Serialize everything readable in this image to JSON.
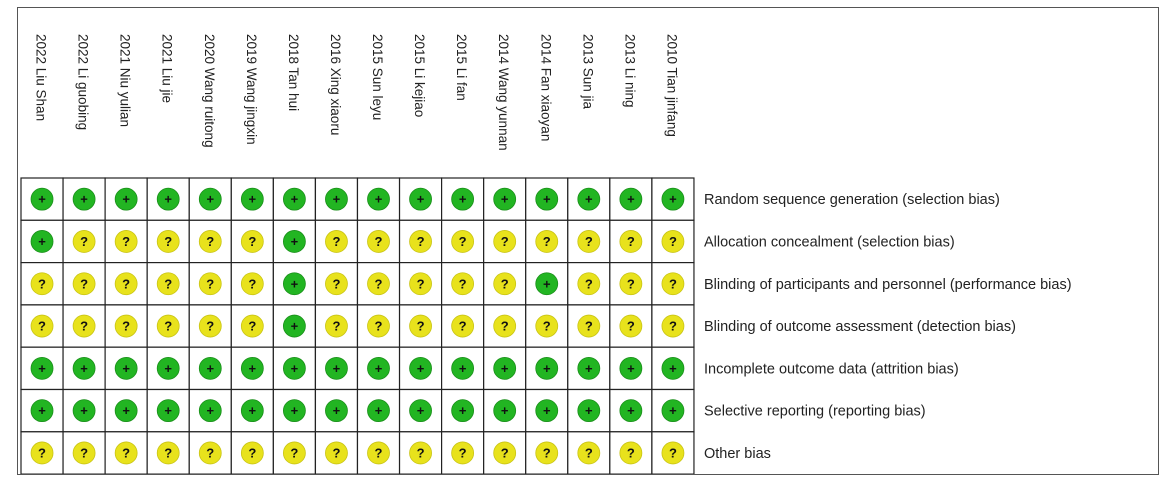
{
  "chart_data": {
    "type": "table",
    "title": "",
    "studies": [
      "2022 Liu Shan",
      "2022 Li guobing",
      "2021 Niu yulian",
      "2021 Liu jie",
      "2020 Wang ruitong",
      "2019 Wang jingxin",
      "2018 Tan hui",
      "2016 Xing xiaoru",
      "2015 Sun leyu",
      "2015 Li kejiao",
      "2015 Li fan",
      "2014 Wang yunnan",
      "2014 Fan xiaoyan",
      "2013 Sun jia",
      "2013 Li ning",
      "2010 Tian jinfang"
    ],
    "domains": [
      "Random sequence generation (selection bias)",
      "Allocation concealment (selection bias)",
      "Blinding of participants and personnel (performance bias)",
      "Blinding of outcome assessment (detection bias)",
      "Incomplete outcome data (attrition bias)",
      "Selective reporting (reporting bias)",
      "Other bias"
    ],
    "judgements": [
      [
        "+",
        "+",
        "+",
        "+",
        "+",
        "+",
        "+",
        "+",
        "+",
        "+",
        "+",
        "+",
        "+",
        "+",
        "+",
        "+"
      ],
      [
        "+",
        "?",
        "?",
        "?",
        "?",
        "?",
        "+",
        "?",
        "?",
        "?",
        "?",
        "?",
        "?",
        "?",
        "?",
        "?"
      ],
      [
        "?",
        "?",
        "?",
        "?",
        "?",
        "?",
        "+",
        "?",
        "?",
        "?",
        "?",
        "?",
        "+",
        "?",
        "?",
        "?"
      ],
      [
        "?",
        "?",
        "?",
        "?",
        "?",
        "?",
        "+",
        "?",
        "?",
        "?",
        "?",
        "?",
        "?",
        "?",
        "?",
        "?"
      ],
      [
        "+",
        "+",
        "+",
        "+",
        "+",
        "+",
        "+",
        "+",
        "+",
        "+",
        "+",
        "+",
        "+",
        "+",
        "+",
        "+"
      ],
      [
        "+",
        "+",
        "+",
        "+",
        "+",
        "+",
        "+",
        "+",
        "+",
        "+",
        "+",
        "+",
        "+",
        "+",
        "+",
        "+"
      ],
      [
        "?",
        "?",
        "?",
        "?",
        "?",
        "?",
        "?",
        "?",
        "?",
        "?",
        "?",
        "?",
        "?",
        "?",
        "?",
        "?"
      ]
    ],
    "legend": {
      "+": {
        "label": "+",
        "color": "#22b522"
      },
      "?": {
        "label": "?",
        "color": "#e8e21c"
      }
    }
  }
}
